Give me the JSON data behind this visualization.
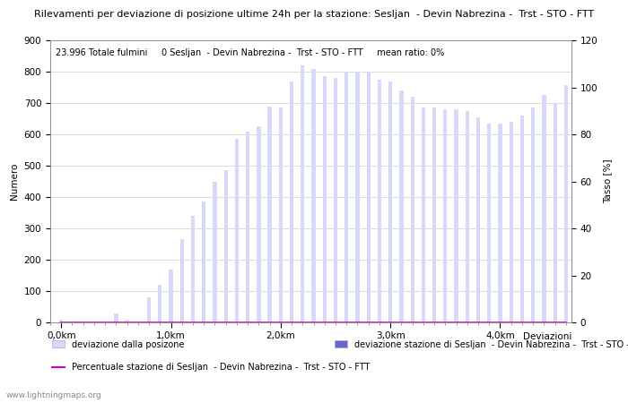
{
  "title": "Rilevamenti per deviazione di posizione ultime 24h per la stazione: Sesljan  - Devin Nabrezina -  Trst - STO - FTT",
  "info_text": "23.996 Totale fulmini     0 Sesljan  - Devin Nabrezina -  Trst - STO - FTT     mean ratio: 0%",
  "ylabel_left": "Numero",
  "ylabel_right": "Tasso [%]",
  "xlabel": "Deviazioni",
  "watermark": "www.lightningmaps.org",
  "bar_values": [
    10,
    0,
    0,
    0,
    0,
    30,
    10,
    0,
    80,
    120,
    170,
    265,
    340,
    385,
    450,
    485,
    585,
    610,
    625,
    690,
    685,
    770,
    820,
    810,
    785,
    780,
    800,
    800,
    800,
    775,
    770,
    740,
    720,
    685,
    685,
    680,
    680,
    675,
    655,
    635,
    635,
    640,
    660,
    685,
    725,
    700,
    757
  ],
  "bar_color_light": "#d8d8f8",
  "bar_color_dark": "#6666cc",
  "line_color": "#cc00cc",
  "ylim_left": [
    0,
    900
  ],
  "ylim_right": [
    0,
    120
  ],
  "x_tick_positions": [
    0,
    10,
    20,
    30,
    40
  ],
  "x_tick_labels": [
    "0,0km",
    "1,0km",
    "2,0km",
    "3,0km",
    "4,0km"
  ],
  "y_left_ticks": [
    0,
    100,
    200,
    300,
    400,
    500,
    600,
    700,
    800,
    900
  ],
  "y_right_ticks": [
    0,
    20,
    40,
    60,
    80,
    100,
    120
  ],
  "legend1_label": "deviazione dalla posizone",
  "legend2_label": "deviazione stazione di Sesljan  - Devin Nabrezina -  Trst - STO - FTT",
  "legend3_label": "Percentuale stazione di Sesljan  - Devin Nabrezina -  Trst - STO - FTT",
  "background_color": "#ffffff",
  "grid_color": "#cccccc",
  "title_fontsize": 8.0,
  "axis_fontsize": 7.5,
  "tick_fontsize": 7.5
}
